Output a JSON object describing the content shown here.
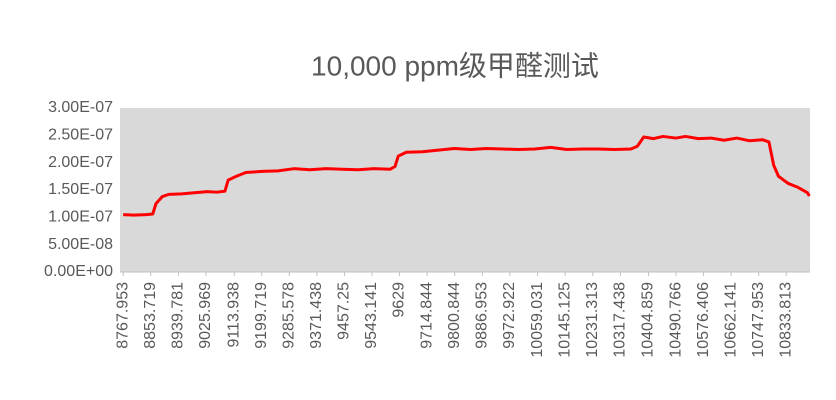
{
  "chart_data": {
    "type": "line",
    "title": "10,000 ppm级甲醛测试",
    "x": [
      8767.953,
      8800,
      8840,
      8860,
      8870,
      8890,
      8910,
      8950,
      8990,
      9030,
      9060,
      9085,
      9095,
      9120,
      9150,
      9200,
      9250,
      9300,
      9350,
      9400,
      9450,
      9500,
      9550,
      9600,
      9615,
      9625,
      9650,
      9700,
      9750,
      9800,
      9850,
      9900,
      9950,
      10000,
      10050,
      10100,
      10150,
      10200,
      10250,
      10300,
      10350,
      10370,
      10390,
      10420,
      10450,
      10490,
      10520,
      10560,
      10600,
      10640,
      10680,
      10720,
      10760,
      10780,
      10795,
      10810,
      10840,
      10870,
      10900,
      10906
    ],
    "series": [
      {
        "color": "#ff0000",
        "values": [
          1.05e-07,
          1.04e-07,
          1.05e-07,
          1.06e-07,
          1.25e-07,
          1.38e-07,
          1.42e-07,
          1.43e-07,
          1.45e-07,
          1.47e-07,
          1.46e-07,
          1.48e-07,
          1.68e-07,
          1.75e-07,
          1.82e-07,
          1.84e-07,
          1.85e-07,
          1.89e-07,
          1.87e-07,
          1.89e-07,
          1.88e-07,
          1.87e-07,
          1.89e-07,
          1.88e-07,
          1.93e-07,
          2.12e-07,
          2.19e-07,
          2.2e-07,
          2.23e-07,
          2.26e-07,
          2.24e-07,
          2.26e-07,
          2.25e-07,
          2.24e-07,
          2.25e-07,
          2.28e-07,
          2.24e-07,
          2.25e-07,
          2.25e-07,
          2.24e-07,
          2.25e-07,
          2.3e-07,
          2.47e-07,
          2.44e-07,
          2.48e-07,
          2.45e-07,
          2.48e-07,
          2.44e-07,
          2.45e-07,
          2.41e-07,
          2.45e-07,
          2.4e-07,
          2.42e-07,
          2.38e-07,
          1.95e-07,
          1.75e-07,
          1.62e-07,
          1.55e-07,
          1.45e-07,
          1.39e-07
        ]
      }
    ],
    "xlim": [
      8758,
      10908
    ],
    "xticks": [
      8767.953,
      8853.719,
      8939.781,
      9025.969,
      9113.938,
      9199.719,
      9285.578,
      9371.438,
      9457.25,
      9543.141,
      9629,
      9714.844,
      9800.844,
      9886.953,
      9972.922,
      10059.031,
      10145.125,
      10231.313,
      10317.438,
      10404.859,
      10490.766,
      10576.406,
      10662.141,
      10747.953,
      10833.813
    ],
    "ylim": [
      0,
      3e-07
    ],
    "yticks": [
      {
        "value": 0,
        "label": "0.00E+00"
      },
      {
        "value": 5e-08,
        "label": "5.00E-08"
      },
      {
        "value": 1e-07,
        "label": "1.00E-07"
      },
      {
        "value": 1.5e-07,
        "label": "1.50E-07"
      },
      {
        "value": 2e-07,
        "label": "2.00E-07"
      },
      {
        "value": 2.5e-07,
        "label": "2.50E-07"
      },
      {
        "value": 3e-07,
        "label": "3.00E-07"
      }
    ],
    "background": "#d9d9d9"
  }
}
